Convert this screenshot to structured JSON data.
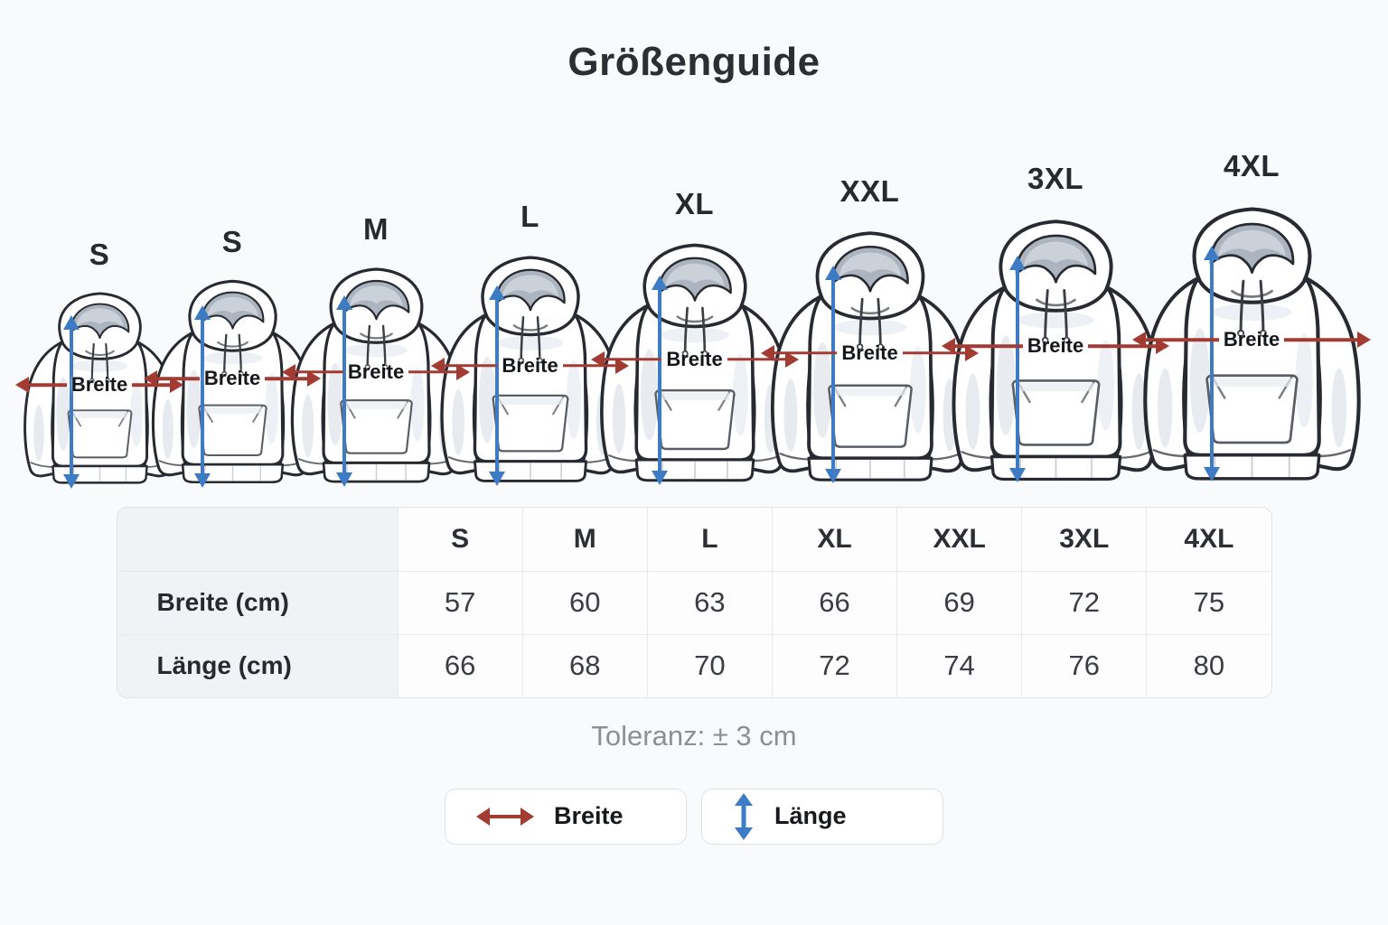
{
  "title": "Größenguide",
  "hoodies": {
    "breite_label": "Breite",
    "items": [
      {
        "label": "S"
      },
      {
        "label": "S"
      },
      {
        "label": "M"
      },
      {
        "label": "L"
      },
      {
        "label": "XL"
      },
      {
        "label": "XXL"
      },
      {
        "label": "3XL"
      },
      {
        "label": "4XL"
      }
    ]
  },
  "table": {
    "corner_label": "",
    "columns": [
      "S",
      "M",
      "L",
      "XL",
      "XXL",
      "3XL",
      "4XL"
    ],
    "rows": [
      {
        "label": "Breite (cm)",
        "values": [
          "57",
          "60",
          "63",
          "66",
          "69",
          "72",
          "75"
        ]
      },
      {
        "label": "Länge (cm)",
        "values": [
          "66",
          "68",
          "70",
          "72",
          "74",
          "76",
          "80"
        ]
      }
    ]
  },
  "tolerance_note": "Toleranz: ± 3 cm",
  "legend": {
    "breite": {
      "label": "Breite"
    },
    "laenge": {
      "label": "Länge"
    }
  },
  "colors": {
    "breite_arrow": "#A23B32",
    "laenge_arrow": "#3D7BC4"
  }
}
